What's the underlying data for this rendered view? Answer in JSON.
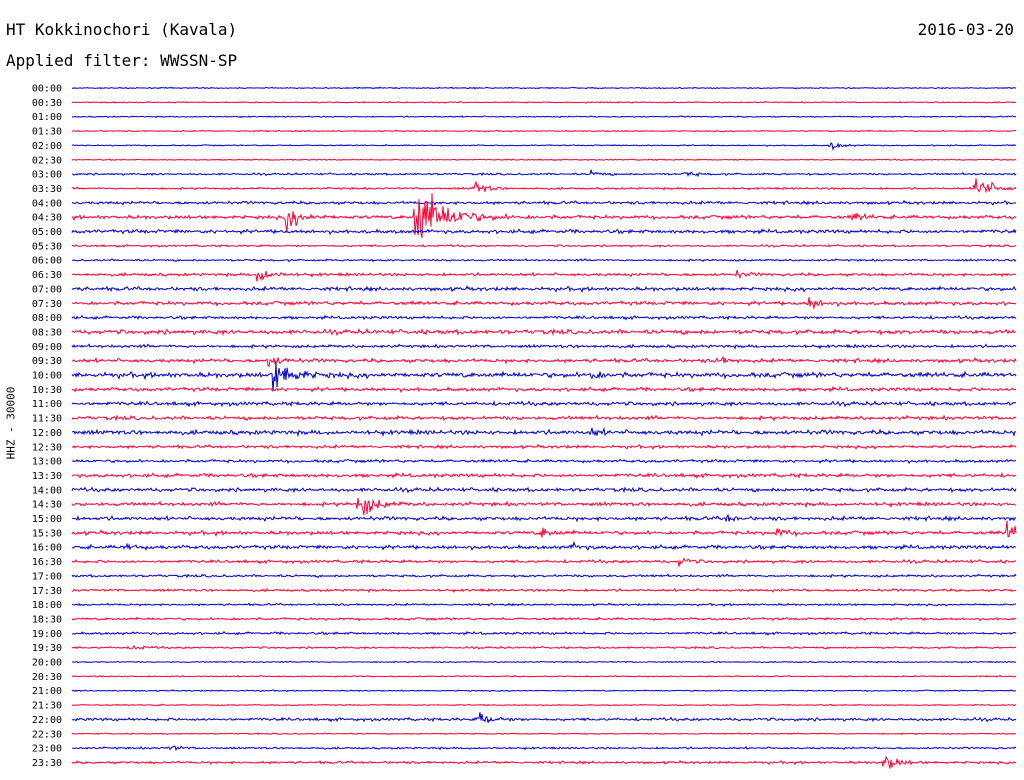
{
  "header": {
    "station": "HT Kokkinochori (Kavala)",
    "date": "2016-03-20",
    "filter": "Applied filter: WWSSN-SP"
  },
  "chart_data": {
    "type": "line",
    "ylabel": "HHZ - 30000",
    "row_labels": [
      "00:00",
      "00:30",
      "01:00",
      "01:30",
      "02:00",
      "02:30",
      "03:00",
      "03:30",
      "04:00",
      "04:30",
      "05:00",
      "05:30",
      "06:00",
      "06:30",
      "07:00",
      "07:30",
      "08:00",
      "08:30",
      "09:00",
      "09:30",
      "10:00",
      "10:30",
      "11:00",
      "11:30",
      "12:00",
      "12:30",
      "13:00",
      "13:30",
      "14:00",
      "14:30",
      "15:00",
      "15:30",
      "16:00",
      "16:30",
      "17:00",
      "17:30",
      "18:00",
      "18:30",
      "19:00",
      "19:30",
      "20:00",
      "20:30",
      "21:00",
      "21:30",
      "22:00",
      "22:30",
      "23:00",
      "23:30"
    ],
    "colors": {
      "even": "#0000cc",
      "odd": "#ff0033"
    },
    "trace_window_minutes": 30,
    "noise_levels": [
      0.5,
      0.5,
      0.5,
      0.5,
      0.5,
      0.5,
      0.8,
      0.8,
      1.2,
      1.5,
      1.5,
      0.8,
      0.8,
      1.2,
      1.5,
      1.5,
      1.2,
      1.8,
      1.2,
      1.5,
      2.0,
      1.5,
      1.5,
      1.5,
      1.8,
      1.2,
      1.2,
      1.5,
      1.5,
      1.5,
      1.5,
      1.5,
      1.5,
      1.2,
      1.0,
      1.0,
      0.8,
      1.0,
      1.0,
      0.8,
      0.5,
      0.5,
      0.5,
      0.5,
      1.2,
      0.5,
      0.8,
      1.0
    ],
    "events": [
      {
        "row": 4,
        "minute": 24.1,
        "amplitude": 4
      },
      {
        "row": 6,
        "minute": 16.5,
        "amplitude": 3
      },
      {
        "row": 6,
        "minute": 19.5,
        "amplitude": 3
      },
      {
        "row": 7,
        "minute": 12.8,
        "amplitude": 6
      },
      {
        "row": 7,
        "minute": 28.7,
        "amplitude": 12
      },
      {
        "row": 9,
        "minute": 6.8,
        "amplitude": 10
      },
      {
        "row": 9,
        "minute": 10.9,
        "amplitude": 30
      },
      {
        "row": 9,
        "minute": 24.8,
        "amplitude": 4
      },
      {
        "row": 13,
        "minute": 5.9,
        "amplitude": 8
      },
      {
        "row": 13,
        "minute": 21.1,
        "amplitude": 3
      },
      {
        "row": 15,
        "minute": 23.4,
        "amplitude": 6
      },
      {
        "row": 19,
        "minute": 6.2,
        "amplitude": 6
      },
      {
        "row": 19,
        "minute": 20.5,
        "amplitude": 4
      },
      {
        "row": 20,
        "minute": 6.4,
        "amplitude": 15
      },
      {
        "row": 20,
        "minute": 16.5,
        "amplitude": 4
      },
      {
        "row": 24,
        "minute": 16.5,
        "amplitude": 3
      },
      {
        "row": 29,
        "minute": 9.1,
        "amplitude": 12
      },
      {
        "row": 30,
        "minute": 20.8,
        "amplitude": 3
      },
      {
        "row": 31,
        "minute": 14.9,
        "amplitude": 5
      },
      {
        "row": 31,
        "minute": 22.4,
        "amplitude": 4
      },
      {
        "row": 31,
        "minute": 29.7,
        "amplitude": 8
      },
      {
        "row": 32,
        "minute": 1.7,
        "amplitude": 3
      },
      {
        "row": 32,
        "minute": 15.9,
        "amplitude": 3
      },
      {
        "row": 33,
        "minute": 19.3,
        "amplitude": 4
      },
      {
        "row": 39,
        "minute": 1.9,
        "amplitude": 3
      },
      {
        "row": 44,
        "minute": 12.9,
        "amplitude": 7
      },
      {
        "row": 46,
        "minute": 3.1,
        "amplitude": 3
      },
      {
        "row": 47,
        "minute": 25.8,
        "amplitude": 8
      }
    ]
  }
}
